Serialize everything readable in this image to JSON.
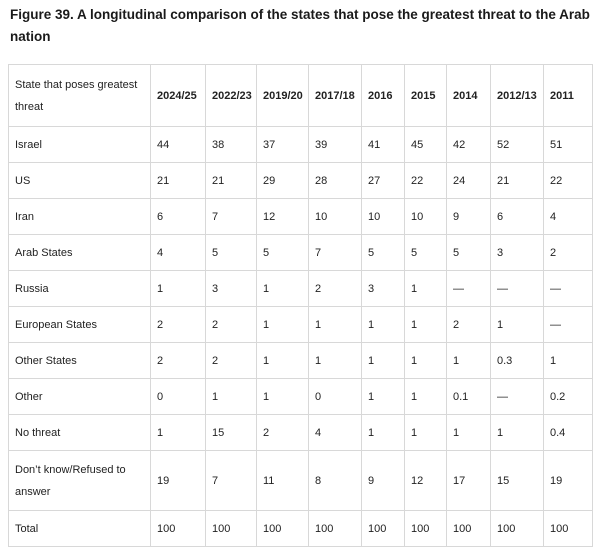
{
  "title": "Figure 39. A longitudinal comparison of the states that pose the greatest threat to the Arab nation",
  "table": {
    "header": [
      "State that poses greatest threat",
      "2024/25",
      "2022/23",
      "2019/20",
      "2017/18",
      "2016",
      "2015",
      "2014",
      "2012/13",
      "2011"
    ],
    "rows": [
      [
        "Israel",
        44,
        38,
        37,
        39,
        41,
        45,
        42,
        52,
        51
      ],
      [
        "US",
        21,
        21,
        29,
        28,
        27,
        22,
        24,
        21,
        22
      ],
      [
        "Iran",
        6,
        7,
        12,
        10,
        10,
        10,
        9,
        6,
        4
      ],
      [
        "Arab States",
        4,
        5,
        5,
        7,
        5,
        5,
        5,
        3,
        2
      ],
      [
        "Russia",
        1,
        3,
        1,
        2,
        3,
        1,
        "—",
        "—",
        "—"
      ],
      [
        "European States",
        2,
        2,
        1,
        1,
        1,
        1,
        2,
        1,
        "—"
      ],
      [
        "Other States",
        2,
        2,
        1,
        1,
        1,
        1,
        1,
        0.3,
        1
      ],
      [
        "Other",
        0,
        1,
        1,
        0,
        1,
        1,
        0.1,
        "—",
        0.2
      ],
      [
        "No threat",
        1,
        15,
        2,
        4,
        1,
        1,
        1,
        1,
        0.4
      ],
      [
        "Don’t know/Refused to answer",
        19,
        7,
        11,
        8,
        9,
        12,
        17,
        15,
        19
      ],
      [
        "Total",
        100,
        100,
        100,
        100,
        100,
        100,
        100,
        100,
        100
      ]
    ]
  }
}
